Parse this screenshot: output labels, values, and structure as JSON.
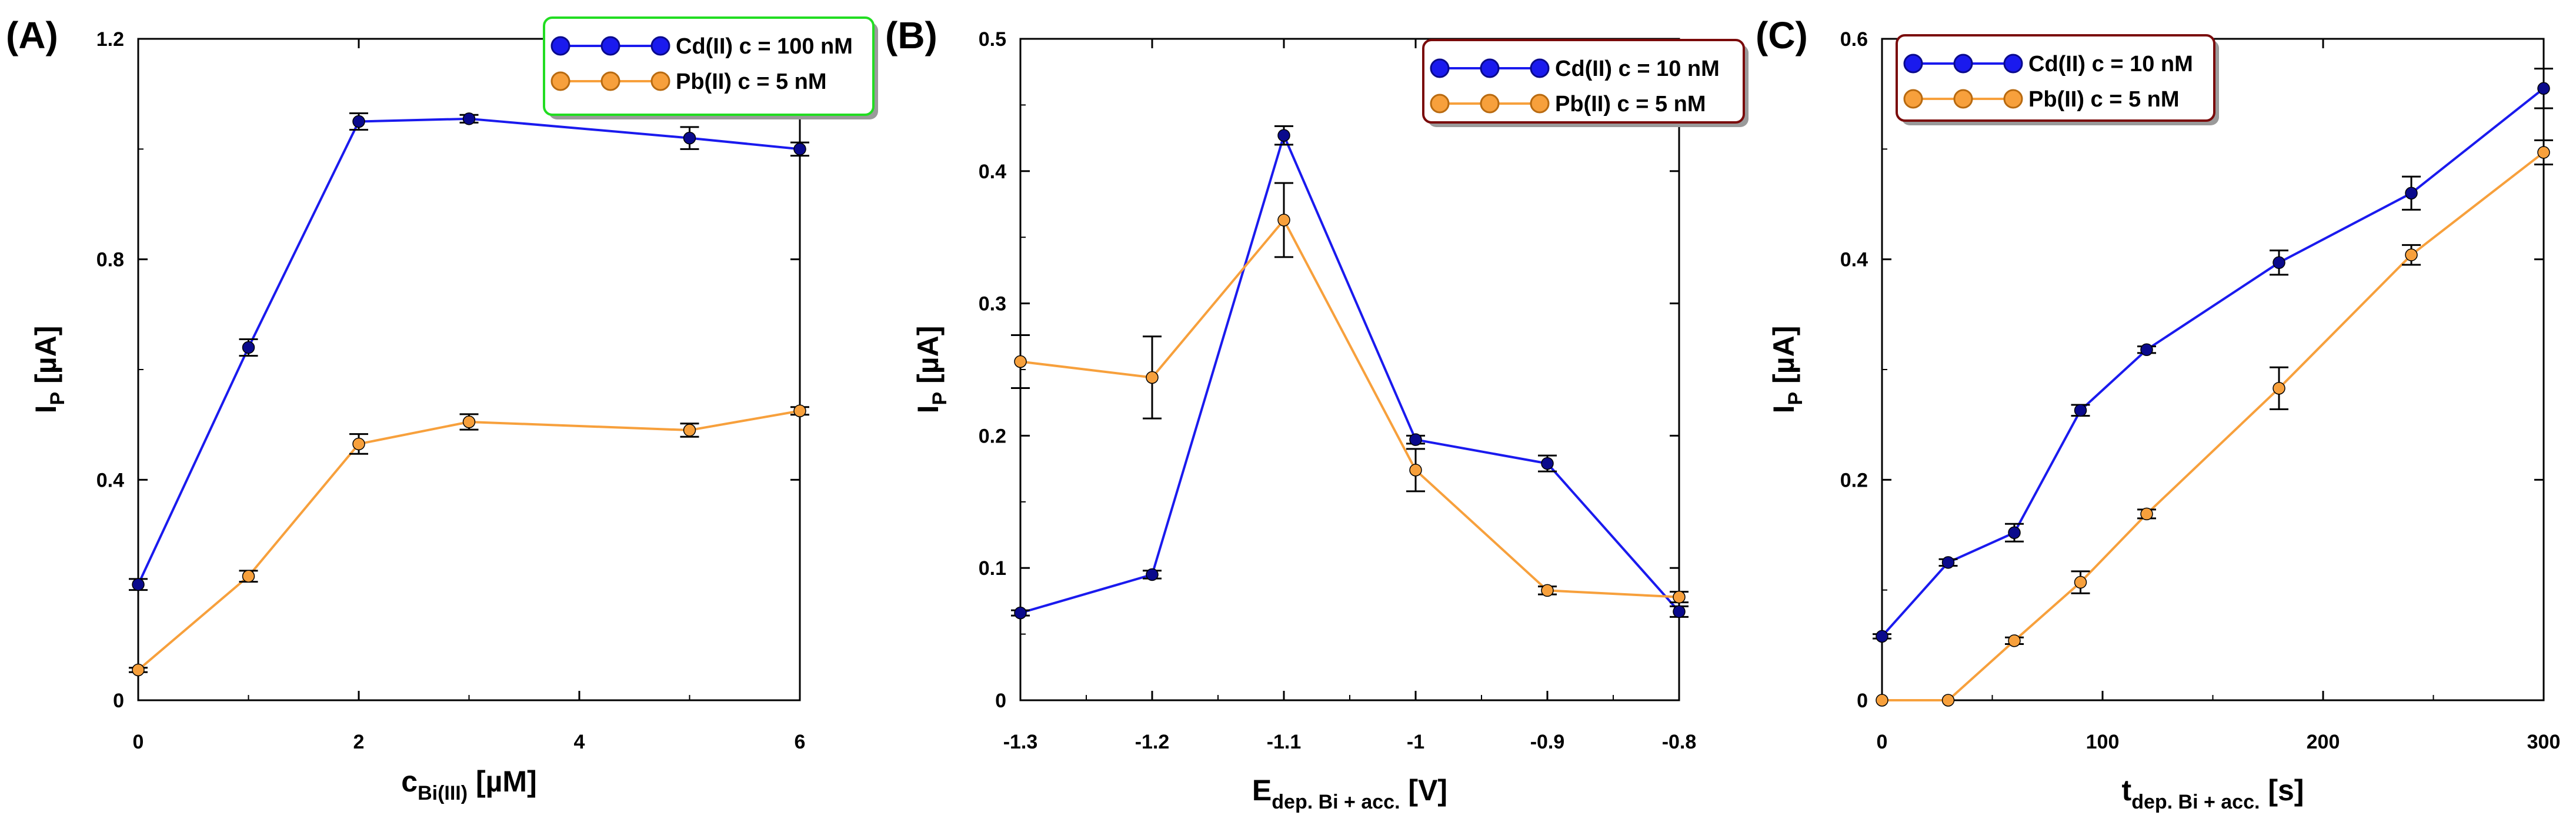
{
  "chart_data": [
    {
      "type": "line",
      "panel_label": "(A)",
      "xlabel": {
        "main": "c",
        "sub": "Bi(III)",
        "unit": " [µM]"
      },
      "ylabel": {
        "main": "I",
        "sub": "P",
        "unit": " [µA]"
      },
      "xlim": [
        0,
        6
      ],
      "ylim": [
        0,
        1.2
      ],
      "xticks": [
        "0",
        "2",
        "4",
        "6"
      ],
      "yticks": [
        "0",
        "0.4",
        "0.8",
        "1.2"
      ],
      "legend_position": "top-right",
      "legend_border_color": "#22dd22",
      "series": [
        {
          "name": "Cd(II) c = 100 nM",
          "color": "#1a1aee",
          "marker_color": "#0a0a8c",
          "x": [
            0,
            1,
            2,
            3,
            5,
            6
          ],
          "y": [
            0.21,
            0.64,
            1.05,
            1.055,
            1.02,
            1.0
          ],
          "err": [
            0.01,
            0.015,
            0.015,
            0.007,
            0.02,
            0.012
          ]
        },
        {
          "name": "Pb(II) c = 5 nM",
          "color": "#f7a03c",
          "marker_color": "#f7a03c",
          "x": [
            0,
            1,
            2,
            3,
            5,
            6
          ],
          "y": [
            0.055,
            0.225,
            0.465,
            0.505,
            0.49,
            0.525
          ],
          "err": [
            0.004,
            0.01,
            0.018,
            0.014,
            0.012,
            0.007
          ]
        }
      ]
    },
    {
      "type": "line",
      "panel_label": "(B)",
      "xlabel": {
        "main": "E",
        "sub": "dep. Bi + acc.",
        "unit": " [V]"
      },
      "ylabel": {
        "main": "I",
        "sub": "P",
        "unit": " [µA]"
      },
      "xlim": [
        -1.3,
        -0.8
      ],
      "ylim": [
        0,
        0.5
      ],
      "xticks": [
        "-1.3",
        "-1.2",
        "-1.1",
        "-1",
        "-0.9",
        "-0.8"
      ],
      "yticks": [
        "0",
        "0.1",
        "0.2",
        "0.3",
        "0.4",
        "0.5"
      ],
      "legend_position": "top-right",
      "legend_border_color": "#7a0a0a",
      "series": [
        {
          "name": "Cd(II) c = 10 nM",
          "color": "#1a1aee",
          "marker_color": "#0a0a8c",
          "x": [
            -1.3,
            -1.2,
            -1.1,
            -1.0,
            -0.9,
            -0.8
          ],
          "y": [
            0.066,
            0.095,
            0.427,
            0.197,
            0.179,
            0.067
          ],
          "err": [
            0.002,
            0.003,
            0.007,
            0.003,
            0.006,
            0.004
          ]
        },
        {
          "name": "Pb(II) c = 5 nM",
          "color": "#f7a03c",
          "marker_color": "#f7a03c",
          "x": [
            -1.3,
            -1.2,
            -1.1,
            -1.0,
            -0.9,
            -0.8
          ],
          "y": [
            0.256,
            0.244,
            0.363,
            0.174,
            0.083,
            0.078
          ],
          "err": [
            0.02,
            0.031,
            0.028,
            0.016,
            0.003,
            0.004
          ]
        }
      ]
    },
    {
      "type": "line",
      "panel_label": "(C)",
      "xlabel": {
        "main": "t",
        "sub": "dep. Bi + acc.",
        "unit": " [s]"
      },
      "ylabel": {
        "main": "I",
        "sub": "P",
        "unit": " [µA]"
      },
      "xlim": [
        0,
        300
      ],
      "ylim": [
        0,
        0.6
      ],
      "xticks": [
        "0",
        "100",
        "200",
        "300"
      ],
      "yticks": [
        "0",
        "0.2",
        "0.4",
        "0.6"
      ],
      "legend_position": "top-left",
      "legend_border_color": "#7a0a0a",
      "series": [
        {
          "name": "Cd(II) c = 10 nM",
          "color": "#1a1aee",
          "marker_color": "#0a0a8c",
          "x": [
            0,
            30,
            60,
            90,
            120,
            180,
            240,
            300
          ],
          "y": [
            0.058,
            0.125,
            0.152,
            0.263,
            0.318,
            0.397,
            0.46,
            0.555
          ],
          "err": [
            0.002,
            0.003,
            0.008,
            0.005,
            0.003,
            0.011,
            0.015,
            0.018
          ]
        },
        {
          "name": "Pb(II) c = 5 nM",
          "color": "#f7a03c",
          "marker_color": "#f7a03c",
          "x": [
            0,
            30,
            60,
            90,
            120,
            180,
            240,
            300
          ],
          "y": [
            0.0,
            0.0,
            0.054,
            0.107,
            0.169,
            0.283,
            0.404,
            0.497
          ],
          "err": [
            0.0,
            0.0,
            0.003,
            0.01,
            0.004,
            0.019,
            0.009,
            0.011
          ]
        }
      ]
    }
  ]
}
